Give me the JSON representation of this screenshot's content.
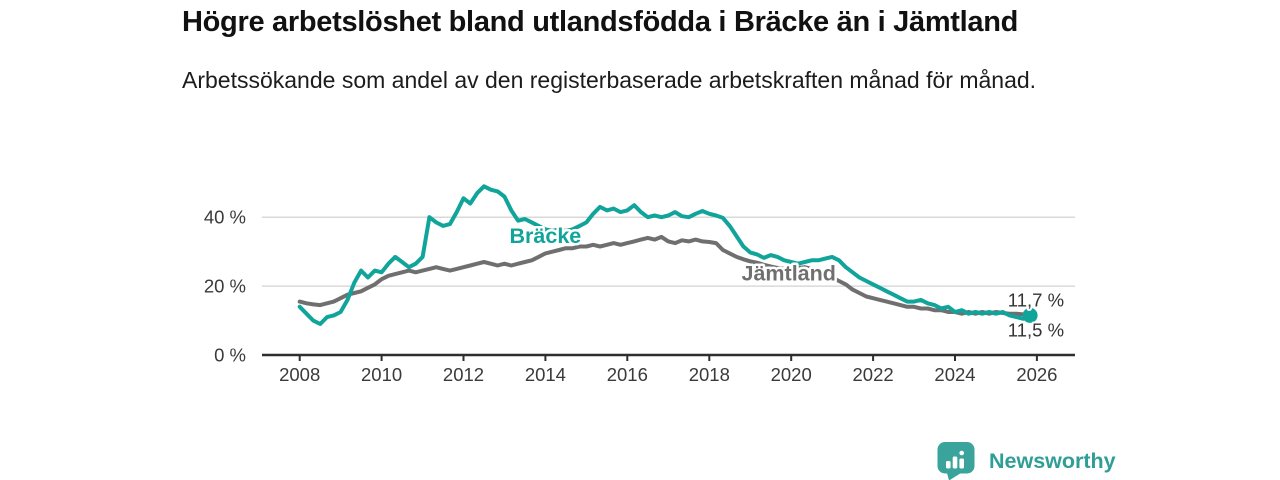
{
  "title": "Högre arbetslöshet bland utlandsfödda i Bräcke än i Jämtland",
  "subtitle": "Arbetssökande som andel av den registerbaserade arbetskraften månad för månad.",
  "branding": {
    "logo_text": "Newsworthy",
    "logo_icon": "newsworthy-speech-bubble-barchart-icon",
    "logo_color": "#3aa39b"
  },
  "chart_data": {
    "type": "line",
    "title": "Högre arbetslöshet bland utlandsfödda i Bräcke än i Jämtland",
    "subtitle": "Arbetssökande som andel av den registerbaserade arbetskraften månad för månad.",
    "xlabel": "",
    "ylabel": "",
    "grid": "horizontal",
    "legend_position": "inline-line-labels",
    "xlim": [
      2007.08,
      2026.93
    ],
    "ylim": [
      0,
      54.3
    ],
    "x_ticks": [
      {
        "value": 2008,
        "label": "2008"
      },
      {
        "value": 2010,
        "label": "2010"
      },
      {
        "value": 2012,
        "label": "2012"
      },
      {
        "value": 2014,
        "label": "2014"
      },
      {
        "value": 2016,
        "label": "2016"
      },
      {
        "value": 2018,
        "label": "2018"
      },
      {
        "value": 2020,
        "label": "2020"
      },
      {
        "value": 2022,
        "label": "2022"
      },
      {
        "value": 2024,
        "label": "2024"
      },
      {
        "value": 2026,
        "label": "2026"
      }
    ],
    "y_ticks": [
      {
        "value": 0,
        "label": "0 %"
      },
      {
        "value": 20,
        "label": "20 %"
      },
      {
        "value": 40,
        "label": "40 %"
      }
    ],
    "colors": {
      "accent_teal": "#10a49a",
      "series_gray": "#6f6f6f",
      "axis": "#2e2e2e",
      "grid": "#d9d9d9",
      "text": "#333333"
    },
    "series": [
      {
        "id": "jamtland",
        "name": "Jämtland",
        "color": "#6f6f6f",
        "width": 4,
        "start_year": 2008.0,
        "step_years": 0.166667,
        "end_dot": false,
        "latest_value_label": "11,7 %",
        "line_label": {
          "year": 2019.94,
          "value": 23.7
        },
        "values": [
          15.5,
          15.0,
          14.7,
          14.5,
          15.0,
          15.5,
          16.5,
          17.5,
          18.0,
          18.5,
          19.5,
          20.5,
          22.0,
          23.0,
          23.5,
          24.0,
          24.5,
          24.0,
          24.5,
          25.0,
          25.5,
          25.0,
          24.5,
          25.0,
          25.5,
          26.0,
          26.5,
          27.0,
          26.5,
          26.0,
          26.5,
          26.0,
          26.5,
          27.0,
          27.5,
          28.5,
          29.5,
          30.0,
          30.5,
          31.0,
          31.0,
          31.5,
          31.5,
          32.0,
          31.5,
          32.0,
          32.5,
          32.0,
          32.5,
          33.0,
          33.5,
          34.0,
          33.5,
          34.3,
          33.0,
          32.5,
          33.3,
          33.0,
          33.5,
          33.0,
          32.8,
          32.5,
          30.5,
          29.5,
          28.5,
          27.8,
          27.2,
          26.8,
          26.2,
          25.7,
          25.3,
          25.0,
          25.0,
          25.3,
          25.5,
          25.0,
          24.3,
          23.5,
          22.5,
          21.5,
          20.5,
          19.0,
          18.0,
          17.0,
          16.5,
          16.0,
          15.5,
          15.0,
          14.5,
          14.0,
          14.0,
          13.5,
          13.5,
          13.0,
          13.0,
          12.5,
          12.5,
          12.0,
          12.5,
          12.0,
          12.5,
          12.0,
          12.5,
          12.2,
          12.0,
          12.0,
          11.8,
          11.7
        ]
      },
      {
        "id": "bracke",
        "name": "Bräcke",
        "color": "#10a49a",
        "width": 4,
        "start_year": 2008.0,
        "step_years": 0.166667,
        "end_dot": true,
        "latest_value_label": "11,5 %",
        "line_label": {
          "year": 2014.0,
          "value": 34.6
        },
        "values": [
          14.0,
          12.0,
          10.0,
          9.0,
          11.0,
          11.5,
          12.5,
          16.0,
          21.0,
          24.5,
          22.5,
          24.5,
          24.0,
          26.5,
          28.5,
          27.0,
          25.5,
          26.5,
          28.5,
          40.0,
          38.5,
          37.5,
          38.0,
          41.5,
          45.5,
          44.0,
          47.0,
          49.0,
          48.0,
          47.5,
          46.0,
          42.0,
          39.0,
          39.5,
          38.5,
          37.5,
          36.5,
          36.0,
          36.5,
          36.0,
          36.5,
          37.5,
          38.5,
          41.0,
          43.0,
          42.0,
          42.5,
          41.5,
          42.0,
          43.5,
          41.5,
          40.0,
          40.5,
          40.0,
          40.5,
          41.5,
          40.3,
          40.0,
          41.0,
          41.8,
          41.0,
          40.5,
          39.8,
          37.5,
          34.5,
          31.5,
          29.8,
          29.2,
          28.2,
          29.0,
          28.5,
          27.5,
          27.0,
          26.5,
          27.0,
          27.5,
          27.5,
          28.0,
          28.5,
          27.5,
          25.5,
          24.0,
          22.5,
          21.5,
          20.5,
          19.5,
          18.5,
          17.5,
          16.5,
          15.5,
          15.5,
          16.0,
          15.0,
          14.5,
          13.5,
          14.0,
          12.5,
          13.0,
          12.0,
          12.5,
          12.0,
          12.5,
          12.0,
          12.5,
          11.5,
          11.0,
          10.5,
          11.5
        ]
      }
    ],
    "end_labels": [
      {
        "text": "11,7 %",
        "series": "jamtland",
        "year": 2025.29,
        "value": 16.0
      },
      {
        "text": "11,5 %",
        "series": "bracke",
        "year": 2025.29,
        "value": 7.3
      }
    ]
  }
}
